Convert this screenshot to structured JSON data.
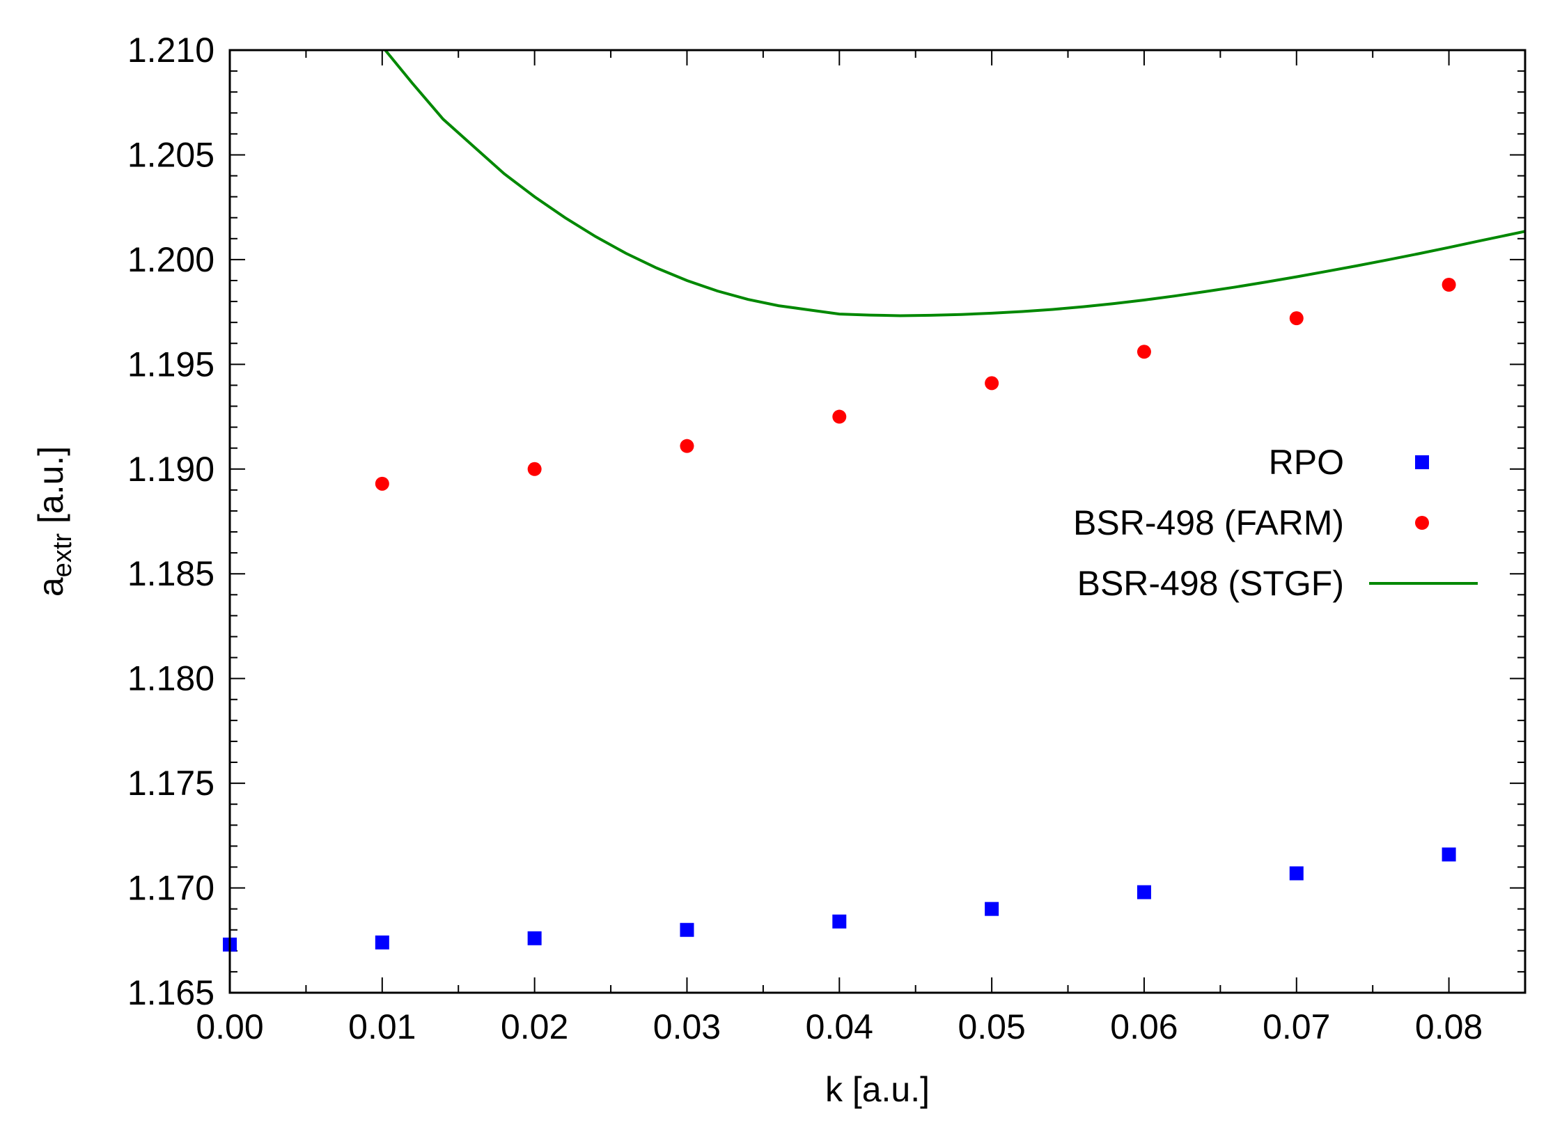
{
  "chart_data": {
    "type": "scatter",
    "xlabel": "k [a.u.]",
    "ylabel_main": "a",
    "ylabel_sub": "extr",
    "ylabel_unit": " [a.u.]",
    "xlim": [
      0.0,
      0.085
    ],
    "ylim": [
      1.165,
      1.21
    ],
    "xticks": [
      "0.00",
      "0.01",
      "0.02",
      "0.03",
      "0.04",
      "0.05",
      "0.06",
      "0.07",
      "0.08"
    ],
    "yticks": [
      "1.165",
      "1.170",
      "1.175",
      "1.180",
      "1.185",
      "1.190",
      "1.195",
      "1.200",
      "1.205",
      "1.210"
    ],
    "grid": false,
    "legend_position": "right",
    "series": [
      {
        "name": "RPO",
        "marker": "square",
        "color": "#0000ff",
        "x": [
          0.0,
          0.01,
          0.02,
          0.03,
          0.04,
          0.05,
          0.06,
          0.07,
          0.08
        ],
        "y": [
          1.1673,
          1.1674,
          1.1676,
          1.168,
          1.1684,
          1.169,
          1.1698,
          1.1707,
          1.1716
        ]
      },
      {
        "name": "BSR-498 (FARM)",
        "marker": "circle",
        "color": "#ff0000",
        "x": [
          0.01,
          0.02,
          0.03,
          0.04,
          0.05,
          0.06,
          0.07,
          0.08
        ],
        "y": [
          1.1893,
          1.19,
          1.1911,
          1.1925,
          1.1941,
          1.1956,
          1.1972,
          1.1988
        ]
      },
      {
        "name": "BSR-498 (STGF)",
        "marker": "line",
        "color": "#008800",
        "x": [
          0.0102,
          0.012,
          0.014,
          0.016,
          0.018,
          0.02,
          0.022,
          0.024,
          0.026,
          0.028,
          0.03,
          0.032,
          0.034,
          0.036,
          0.038,
          0.04,
          0.042,
          0.044,
          0.046,
          0.048,
          0.05,
          0.052,
          0.054,
          0.056,
          0.058,
          0.06,
          0.062,
          0.064,
          0.066,
          0.068,
          0.07,
          0.072,
          0.074,
          0.076,
          0.078,
          0.08,
          0.082,
          0.085
        ],
        "y": [
          1.21,
          1.2084,
          1.2067,
          1.2054,
          1.2041,
          1.203,
          1.202,
          1.2011,
          1.2003,
          1.1996,
          1.199,
          1.1985,
          1.1981,
          1.1978,
          1.1976,
          1.1974,
          1.19735,
          1.19732,
          1.19734,
          1.19738,
          1.19744,
          1.19752,
          1.19762,
          1.19775,
          1.1979,
          1.19807,
          1.19826,
          1.19847,
          1.19869,
          1.19893,
          1.19918,
          1.19944,
          1.19971,
          1.19999,
          1.20028,
          1.20058,
          1.20089,
          1.20135
        ]
      }
    ]
  }
}
